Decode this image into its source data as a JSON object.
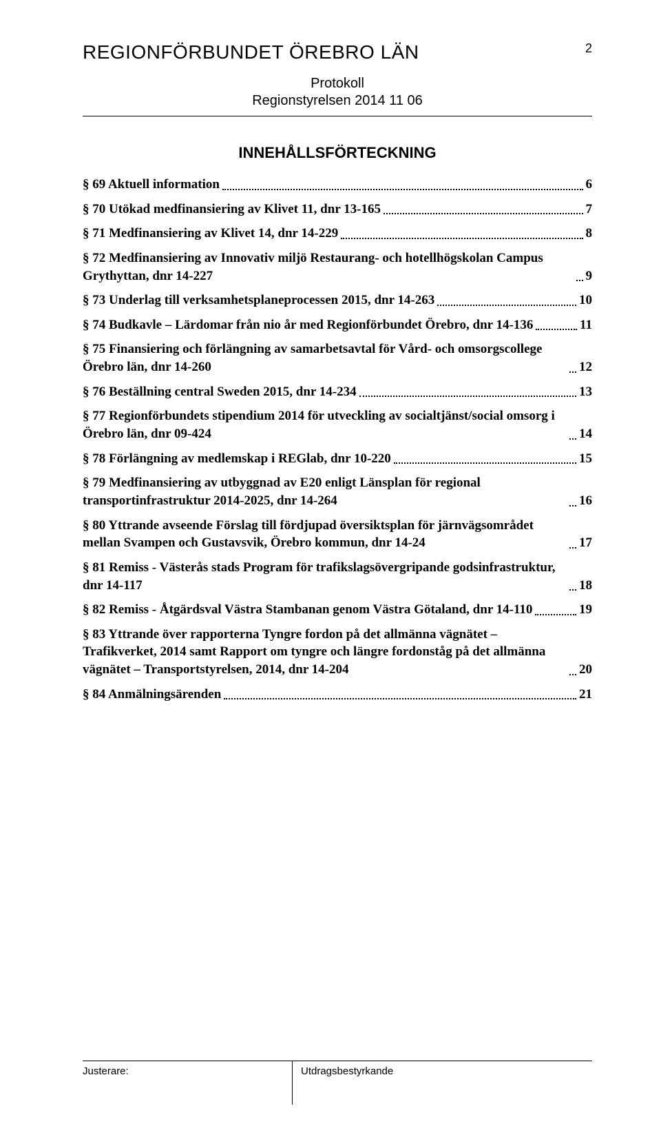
{
  "header": {
    "org_title": "REGIONFÖRBUNDET ÖREBRO LÄN",
    "page_number": "2",
    "doc_type": "Protokoll",
    "meeting": "Regionstyrelsen 2014 11 06"
  },
  "toc": {
    "heading": "INNEHÅLLSFÖRTECKNING",
    "entries": [
      {
        "label": "§ 69 Aktuell information",
        "page": "6"
      },
      {
        "label": "§ 70 Utökad medfinansiering av Klivet 11, dnr 13-165",
        "page": "7"
      },
      {
        "label": "§ 71 Medfinansiering av Klivet 14, dnr 14-229",
        "page": "8"
      },
      {
        "label": "§ 72 Medfinansiering av Innovativ miljö Restaurang- och hotellhögskolan Campus Grythyttan, dnr 14-227",
        "page": "9"
      },
      {
        "label": "§ 73 Underlag till verksamhetsplaneprocessen 2015, dnr 14-263",
        "page": "10"
      },
      {
        "label": "§ 74 Budkavle – Lärdomar från nio år med Regionförbundet Örebro, dnr 14-136",
        "page": "11"
      },
      {
        "label": "§ 75 Finansiering och förlängning av samarbetsavtal för Vård- och omsorgscollege Örebro län, dnr 14-260",
        "page": "12"
      },
      {
        "label": "§ 76 Beställning central Sweden 2015, dnr 14-234",
        "page": "13"
      },
      {
        "label": "§ 77 Regionförbundets stipendium 2014 för utveckling av socialtjänst/social omsorg i Örebro län, dnr 09-424",
        "page": "14"
      },
      {
        "label": "§ 78 Förlängning av medlemskap i REGlab, dnr 10-220",
        "page": "15"
      },
      {
        "label": "§ 79 Medfinansiering av utbyggnad av E20 enligt Länsplan för regional transportinfrastruktur 2014-2025, dnr 14-264",
        "page": "16"
      },
      {
        "label": "§ 80 Yttrande avseende Förslag till fördjupad översiktsplan för järnvägsområdet mellan Svampen och Gustavsvik, Örebro kommun, dnr 14-24",
        "page": "17"
      },
      {
        "label": "§ 81 Remiss - Västerås stads Program för trafikslagsövergripande godsinfrastruktur, dnr 14-117",
        "page": "18"
      },
      {
        "label": "§ 82 Remiss - Åtgärdsval Västra Stambanan genom Västra Götaland, dnr 14-110",
        "page": "19"
      },
      {
        "label": "§ 83 Yttrande över rapporterna Tyngre fordon på det allmänna vägnätet – Trafikverket, 2014 samt Rapport om tyngre och längre fordonståg på det allmänna vägnätet – Transportstyrelsen, 2014, dnr 14-204",
        "page": "20"
      },
      {
        "label": "§ 84 Anmälningsärenden",
        "page": "21"
      }
    ]
  },
  "footer": {
    "left_label": "Justerare:",
    "right_label": "Utdragsbestyrkande"
  }
}
